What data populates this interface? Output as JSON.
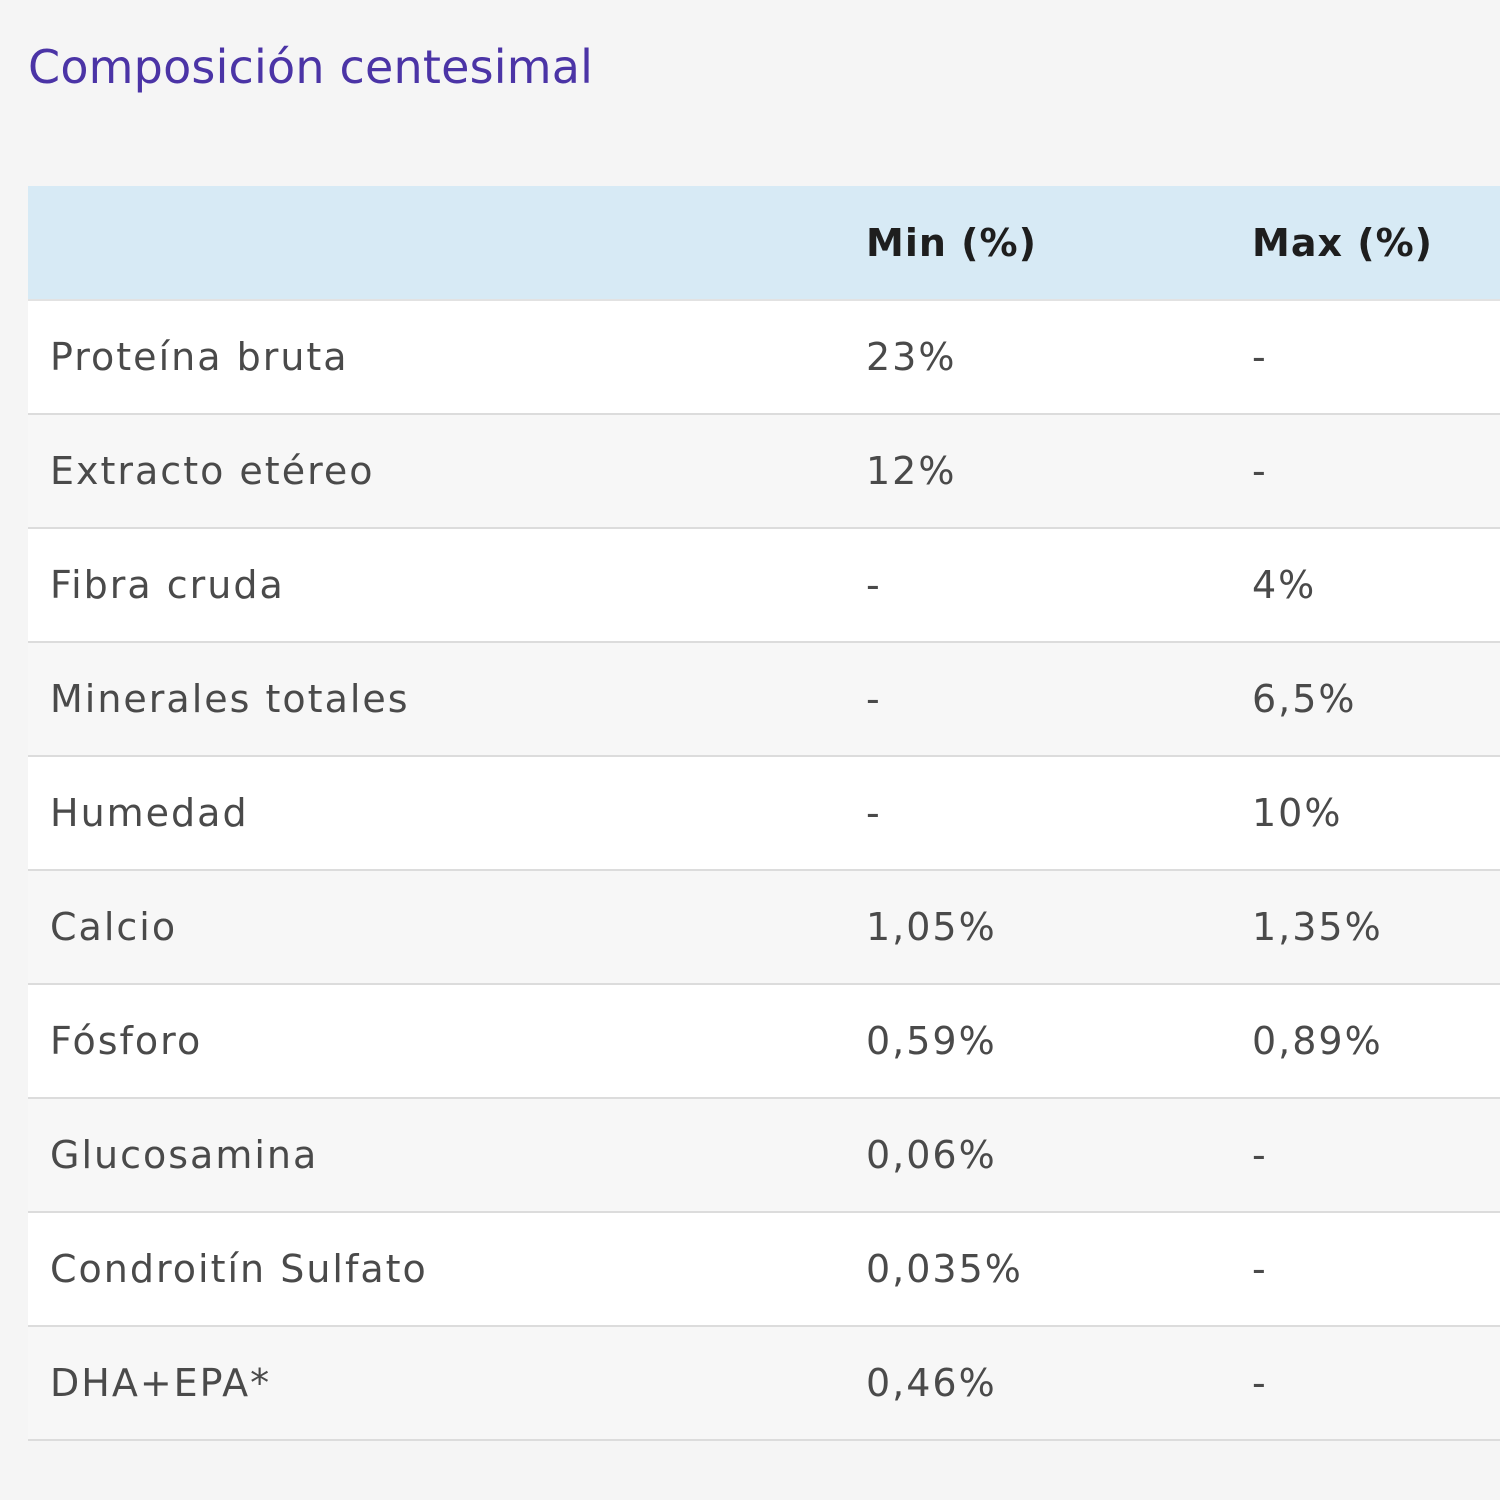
{
  "title": "Composición centesimal",
  "table": {
    "headers": [
      "",
      "Min (%)",
      "Max (%)"
    ],
    "rows": [
      {
        "name": "Proteína bruta",
        "min": "23%",
        "max": "-"
      },
      {
        "name": "Extracto etéreo",
        "min": "12%",
        "max": "-"
      },
      {
        "name": "Fibra cruda",
        "min": "-",
        "max": "4%"
      },
      {
        "name": "Minerales totales",
        "min": "-",
        "max": "6,5%"
      },
      {
        "name": "Humedad",
        "min": "-",
        "max": "10%"
      },
      {
        "name": "Calcio",
        "min": "1,05%",
        "max": "1,35%"
      },
      {
        "name": "Fósforo",
        "min": "0,59%",
        "max": "0,89%"
      },
      {
        "name": "Glucosamina",
        "min": "0,06%",
        "max": "-"
      },
      {
        "name": "Condroitín Sulfato",
        "min": "0,035%",
        "max": "-"
      },
      {
        "name": "DHA+EPA*",
        "min": "0,46%",
        "max": "-"
      }
    ]
  },
  "colors": {
    "title": "#4b34a6",
    "header_bg": "#d7eaf5",
    "page_bg": "#f5f5f5"
  }
}
